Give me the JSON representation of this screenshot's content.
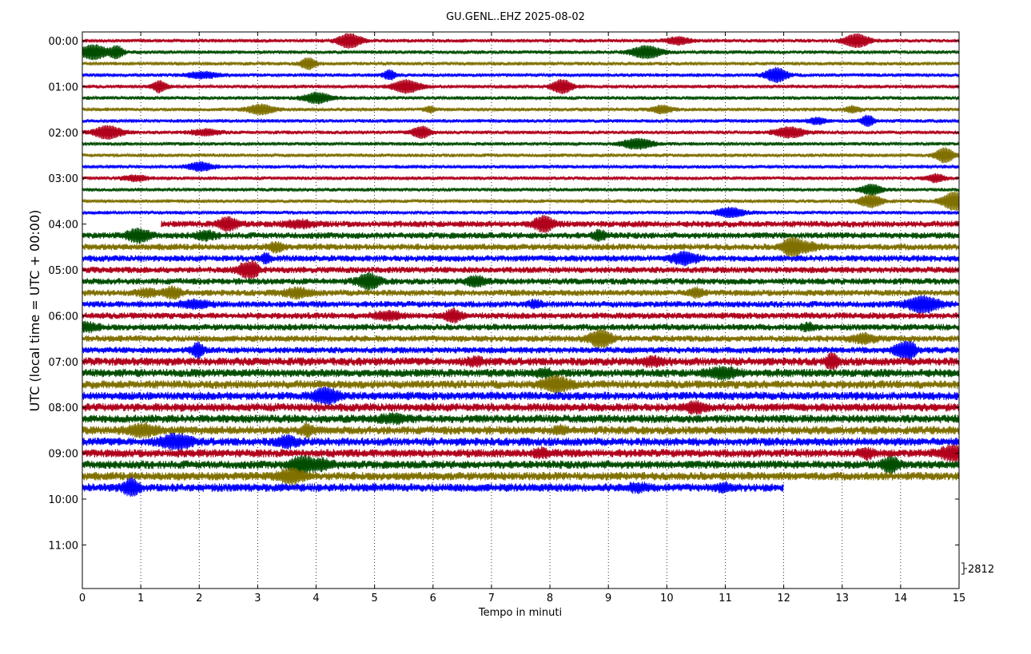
{
  "chart_data": {
    "type": "line",
    "title": "GU.GENL..EHZ 2025-08-02",
    "xlabel": "Tempo in minuti",
    "ylabel": "UTC (local time = UTC + 00:00)",
    "xlim": [
      0,
      15
    ],
    "x_ticks": [
      "0",
      "1",
      "2",
      "3",
      "4",
      "5",
      "6",
      "7",
      "8",
      "9",
      "10",
      "11",
      "12",
      "13",
      "14",
      "15"
    ],
    "y_ticks": [
      "00:00",
      "01:00",
      "02:00",
      "03:00",
      "04:00",
      "05:00",
      "06:00",
      "07:00",
      "08:00",
      "09:00",
      "10:00",
      "11:00"
    ],
    "scale_label": "2812",
    "grid_x": "dotted",
    "series_colors": [
      "#b0001b",
      "#004d00",
      "#807000",
      "#0000ff"
    ],
    "trace_interval_minutes": 15,
    "traces": [
      {
        "start_time": "00:00",
        "x_start": 0,
        "x_end": 15
      },
      {
        "start_time": "00:15",
        "x_start": 0,
        "x_end": 15
      },
      {
        "start_time": "00:30",
        "x_start": 0,
        "x_end": 15
      },
      {
        "start_time": "00:45",
        "x_start": 0,
        "x_end": 15
      },
      {
        "start_time": "01:00",
        "x_start": 0,
        "x_end": 15
      },
      {
        "start_time": "01:15",
        "x_start": 0,
        "x_end": 15
      },
      {
        "start_time": "01:30",
        "x_start": 0,
        "x_end": 15
      },
      {
        "start_time": "01:45",
        "x_start": 0,
        "x_end": 15
      },
      {
        "start_time": "02:00",
        "x_start": 0,
        "x_end": 15
      },
      {
        "start_time": "02:15",
        "x_start": 0,
        "x_end": 15
      },
      {
        "start_time": "02:30",
        "x_start": 0,
        "x_end": 15
      },
      {
        "start_time": "02:45",
        "x_start": 0,
        "x_end": 15
      },
      {
        "start_time": "03:00",
        "x_start": 0,
        "x_end": 15
      },
      {
        "start_time": "03:15",
        "x_start": 0,
        "x_end": 15
      },
      {
        "start_time": "03:30",
        "x_start": 0,
        "x_end": 15
      },
      {
        "start_time": "03:45",
        "x_start": 0,
        "x_end": 15
      },
      {
        "start_time": "04:00",
        "x_start": 1.35,
        "x_end": 15
      },
      {
        "start_time": "04:15",
        "x_start": 0,
        "x_end": 15
      },
      {
        "start_time": "04:30",
        "x_start": 0,
        "x_end": 15
      },
      {
        "start_time": "04:45",
        "x_start": 0,
        "x_end": 15
      },
      {
        "start_time": "05:00",
        "x_start": 0,
        "x_end": 15
      },
      {
        "start_time": "05:15",
        "x_start": 0,
        "x_end": 15
      },
      {
        "start_time": "05:30",
        "x_start": 0,
        "x_end": 15
      },
      {
        "start_time": "05:45",
        "x_start": 0,
        "x_end": 15
      },
      {
        "start_time": "06:00",
        "x_start": 0,
        "x_end": 15
      },
      {
        "start_time": "06:15",
        "x_start": 0,
        "x_end": 15
      },
      {
        "start_time": "06:30",
        "x_start": 0,
        "x_end": 15
      },
      {
        "start_time": "06:45",
        "x_start": 0,
        "x_end": 15
      },
      {
        "start_time": "07:00",
        "x_start": 0,
        "x_end": 15
      },
      {
        "start_time": "07:15",
        "x_start": 0,
        "x_end": 15
      },
      {
        "start_time": "07:30",
        "x_start": 0,
        "x_end": 15
      },
      {
        "start_time": "07:45",
        "x_start": 0,
        "x_end": 15
      },
      {
        "start_time": "08:00",
        "x_start": 0,
        "x_end": 15
      },
      {
        "start_time": "08:15",
        "x_start": 0,
        "x_end": 15
      },
      {
        "start_time": "08:30",
        "x_start": 0,
        "x_end": 15
      },
      {
        "start_time": "08:45",
        "x_start": 0,
        "x_end": 15
      },
      {
        "start_time": "09:00",
        "x_start": 0,
        "x_end": 15
      },
      {
        "start_time": "09:15",
        "x_start": 0,
        "x_end": 15
      },
      {
        "start_time": "09:30",
        "x_start": 0,
        "x_end": 15
      },
      {
        "start_time": "09:45",
        "x_start": 0,
        "x_end": 12
      }
    ]
  }
}
